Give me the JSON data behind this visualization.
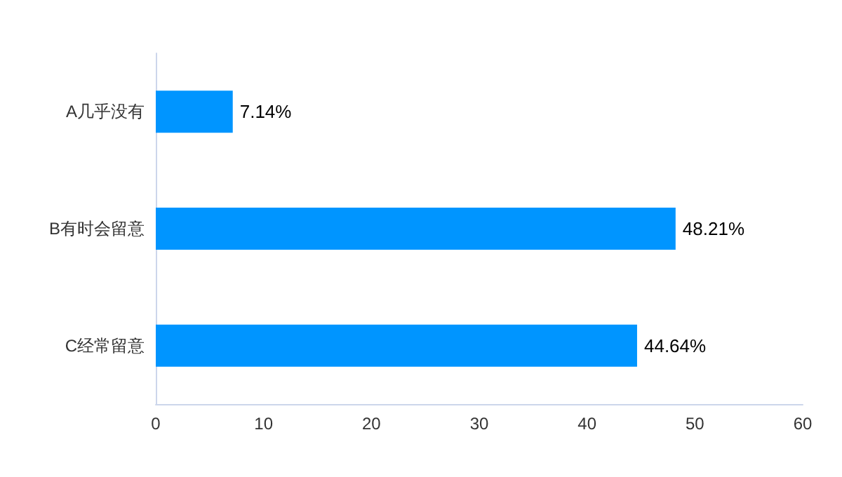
{
  "chart_data": {
    "type": "bar",
    "orientation": "horizontal",
    "categories": [
      "A几乎没有",
      "B有时会留意",
      "C经常留意"
    ],
    "values": [
      7.14,
      48.21,
      44.64
    ],
    "color": "#0095ff",
    "xlim": [
      0,
      60
    ],
    "xticks": [
      0,
      10,
      20,
      30,
      40,
      50,
      60
    ],
    "value_labels": [
      "7.14%",
      "48.21%",
      "44.64%"
    ],
    "grid": false
  }
}
